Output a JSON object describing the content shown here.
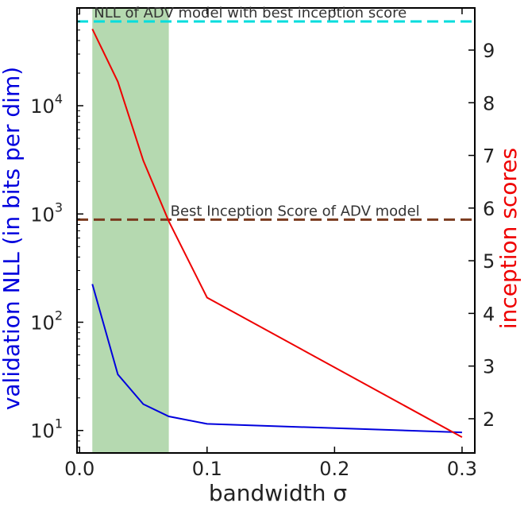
{
  "chart_data": {
    "type": "line",
    "xlabel": "bandwidth σ",
    "ylabel_left": "validation NLL (in bits per dim)",
    "ylabel_right": "inception scores",
    "x_ticks": [
      "0.0",
      "0.1",
      "0.2",
      "0.3"
    ],
    "xlim": [
      -0.002,
      0.31
    ],
    "ylim_left": [
      6.2,
      80000
    ],
    "yscale_left": "log",
    "ylim_right": [
      1.35,
      9.8
    ],
    "y_ticks_left": [
      {
        "value": 10,
        "base": "10",
        "exp": "1"
      },
      {
        "value": 100,
        "base": "10",
        "exp": "2"
      },
      {
        "value": 1000,
        "base": "10",
        "exp": "3"
      },
      {
        "value": 10000,
        "base": "10",
        "exp": "4"
      }
    ],
    "y_ticks_right": [
      "2",
      "3",
      "4",
      "5",
      "6",
      "7",
      "8",
      "9"
    ],
    "series": [
      {
        "axis": "left",
        "color": "#0000dd",
        "x": [
          0.01,
          0.03,
          0.05,
          0.07,
          0.1,
          0.3
        ],
        "values": [
          225,
          33,
          17.5,
          13.5,
          11.5,
          9.6
        ]
      },
      {
        "axis": "right",
        "color": "#ee0000",
        "x": [
          0.01,
          0.03,
          0.05,
          0.07,
          0.1,
          0.3
        ],
        "values": [
          9.4,
          8.4,
          6.9,
          5.75,
          4.3,
          1.65
        ]
      }
    ],
    "shaded_region": {
      "x": [
        0.01,
        0.07
      ],
      "color": "#b5d9b0"
    },
    "hlines": [
      {
        "axis": "left",
        "value": 60000,
        "color": "#00dddd",
        "label": "NLL of ADV model with best inception score"
      },
      {
        "axis": "right",
        "value": 5.78,
        "color": "#7a3a1e",
        "label": "Best Inception Score of ADV model"
      }
    ],
    "grid": false,
    "colors": {
      "left_axis": "#0000dd",
      "right_axis": "#ee0000"
    }
  }
}
